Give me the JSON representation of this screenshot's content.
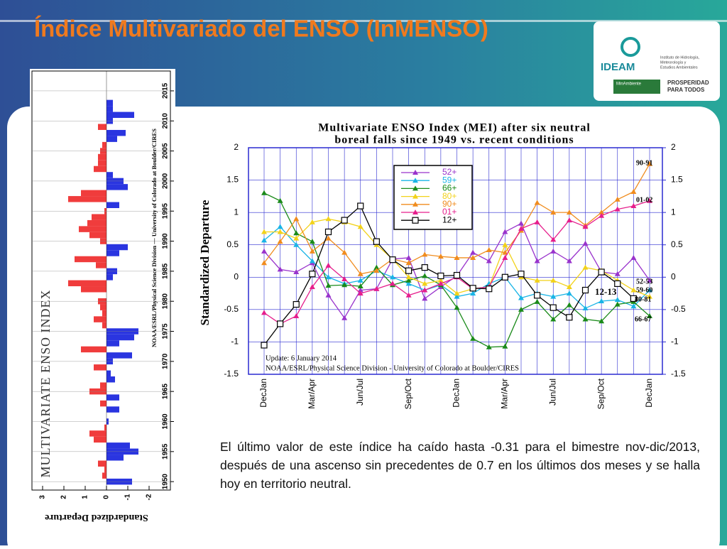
{
  "title": "Índice Multivariado del ENSO (InMENSO)",
  "logo": {
    "name": "IDEAM",
    "subtitle": [
      "Instituto de Hidrología,",
      "Meteorología y",
      "Estudios Ambientales"
    ],
    "ministry": "MinAmbiente",
    "slogan": [
      "PROSPERIDAD",
      "PARA TODOS"
    ]
  },
  "paragraph": "El último valor de este índice ha caído hasta -0.31 para el bimestre nov-dic/2013, después de una ascenso sin precedentes de 0.7 en los últimos dos meses y se halla hoy en territorio neutral.",
  "chart_data": [
    {
      "type": "bar-history",
      "title": "MULTIVARIATE ENSO INDEX",
      "value_label": "Standardized Departure",
      "credit": "NOAA/ESRL/Physical Science Division — University of Colorado at Boulder/CIRES",
      "x": [
        1950,
        1951,
        1952,
        1953,
        1954,
        1955,
        1956,
        1957,
        1958,
        1959,
        1960,
        1961,
        1962,
        1963,
        1964,
        1965,
        1966,
        1967,
        1968,
        1969,
        1970,
        1971,
        1972,
        1973,
        1974,
        1975,
        1976,
        1977,
        1978,
        1979,
        1980,
        1981,
        1982,
        1983,
        1984,
        1985,
        1986,
        1987,
        1988,
        1989,
        1990,
        1991,
        1992,
        1993,
        1994,
        1995,
        1996,
        1997,
        1998,
        1999,
        2000,
        2001,
        2002,
        2003,
        2004,
        2005,
        2006,
        2007,
        2008,
        2009,
        2010,
        2011,
        2012,
        2013
      ],
      "values": [
        -1.2,
        0.2,
        0.1,
        0.4,
        -0.8,
        -1.5,
        -1.1,
        0.6,
        0.8,
        0.1,
        -0.1,
        0.0,
        -0.6,
        0.3,
        -0.6,
        0.8,
        0.3,
        -0.4,
        -0.2,
        0.6,
        -0.3,
        -1.2,
        1.2,
        -0.6,
        -1.3,
        -1.5,
        0.2,
        0.6,
        0.2,
        0.3,
        0.4,
        0.0,
        1.2,
        1.8,
        -0.3,
        -0.5,
        0.5,
        1.5,
        -0.6,
        -1.0,
        0.3,
        0.8,
        1.3,
        0.9,
        0.7,
        0.1,
        -0.6,
        1.8,
        1.2,
        -1.0,
        -0.8,
        -0.3,
        0.6,
        0.4,
        0.4,
        0.3,
        0.2,
        -0.5,
        -0.9,
        0.4,
        -0.3,
        -1.3,
        -0.3,
        -0.3
      ],
      "positive_color": "#f03c3c",
      "negative_color": "#2a35e0",
      "xlim": [
        3.5,
        -3
      ],
      "xticks": [
        3,
        2,
        1,
        0,
        -1,
        -2
      ],
      "ylim": [
        1948.6,
        2018.3
      ],
      "yticks": [
        1950,
        1955,
        1960,
        1965,
        1970,
        1975,
        1980,
        1985,
        1990,
        1995,
        2000,
        2005,
        2010,
        2015
      ]
    },
    {
      "type": "line",
      "title": [
        "Multivariate ENSO Index (MEI) after six neutral",
        "boreal falls since 1949 vs. recent conditions"
      ],
      "y_label": "Standardized Departure",
      "categories": [
        "DecJan",
        null,
        null,
        "Mar/Apr",
        null,
        null,
        "Jun/Jul",
        null,
        null,
        "Sep/Oct",
        null,
        null,
        "DecJan",
        null,
        null,
        "Mar/Apr",
        null,
        null,
        "Jun/Jul",
        null,
        null,
        "Sep/Oct",
        null,
        null,
        "DecJan"
      ],
      "ylim": [
        -1.5,
        2
      ],
      "yticks": [
        -1.5,
        -1,
        -0.5,
        0,
        0.5,
        1,
        1.5,
        2
      ],
      "y2lim": [
        -1.5,
        2
      ],
      "y2ticks": [
        -1.5,
        -1,
        -0.5,
        0,
        0.5,
        1,
        1.5,
        2
      ],
      "series": [
        {
          "name": "52+",
          "color": "#9933cc",
          "marker": "triangle",
          "values": [
            0.4,
            0.12,
            0.08,
            0.22,
            -0.28,
            -0.63,
            -0.2,
            -0.18,
            0.28,
            0.3,
            -0.33,
            -0.15,
            0.02,
            0.38,
            0.25,
            0.7,
            0.83,
            0.25,
            0.4,
            0.25,
            0.52,
            0.08,
            0.05,
            0.3,
            -0.05
          ]
        },
        {
          "name": "59+",
          "color": "#19b4e6",
          "marker": "triangle",
          "values": [
            0.57,
            0.78,
            0.5,
            0.25,
            0.0,
            -0.1,
            -0.05,
            0.1,
            0.0,
            -0.1,
            -0.2,
            -0.12,
            -0.3,
            -0.25,
            -0.1,
            0.0,
            -0.32,
            -0.25,
            -0.3,
            -0.25,
            -0.48,
            -0.37,
            -0.35,
            -0.45,
            -0.2
          ]
        },
        {
          "name": "66+",
          "color": "#1a8a1a",
          "marker": "triangle",
          "values": [
            1.3,
            1.18,
            0.68,
            0.55,
            -0.13,
            -0.12,
            -0.14,
            0.15,
            -0.12,
            -0.05,
            0.02,
            -0.12,
            -0.47,
            -0.95,
            -1.08,
            -1.07,
            -0.5,
            -0.38,
            -0.65,
            -0.43,
            -0.65,
            -0.68,
            -0.42,
            -0.38,
            -0.6
          ]
        },
        {
          "name": "80+",
          "color": "#f2d21a",
          "marker": "triangle",
          "values": [
            0.7,
            0.7,
            0.6,
            0.85,
            0.9,
            0.85,
            0.78,
            0.5,
            0.28,
            0.0,
            -0.1,
            -0.05,
            -0.25,
            -0.18,
            -0.15,
            0.5,
            0.0,
            -0.05,
            -0.05,
            -0.15,
            0.15,
            0.1,
            -0.05,
            -0.2,
            -0.3
          ]
        },
        {
          "name": "90+",
          "color": "#f08c1e",
          "marker": "triangle",
          "values": [
            0.22,
            0.55,
            0.9,
            0.4,
            0.6,
            0.38,
            0.05,
            0.1,
            0.28,
            0.22,
            0.35,
            0.32,
            0.3,
            0.3,
            0.42,
            0.38,
            0.72,
            1.15,
            1.0,
            1.0,
            0.8,
            1.0,
            1.2,
            1.32,
            1.75
          ]
        },
        {
          "name": "01+",
          "color": "#e61e8c",
          "marker": "triangle",
          "values": [
            -0.55,
            -0.72,
            -0.6,
            -0.15,
            0.18,
            -0.03,
            -0.25,
            -0.18,
            -0.1,
            -0.28,
            -0.2,
            -0.1,
            0.0,
            -0.18,
            -0.15,
            0.3,
            0.75,
            0.85,
            0.58,
            0.88,
            0.78,
            0.95,
            1.05,
            1.1,
            1.18
          ]
        },
        {
          "name": "12+",
          "color": "#000000",
          "marker": "square",
          "values": [
            -1.05,
            -0.72,
            -0.42,
            0.05,
            0.7,
            0.88,
            1.1,
            0.55,
            0.27,
            0.1,
            0.15,
            0.02,
            0.03,
            -0.17,
            -0.18,
            0.0,
            0.05,
            -0.28,
            -0.47,
            -0.62,
            -0.2,
            0.08,
            -0.1,
            -0.33,
            null
          ]
        }
      ],
      "annotations": [
        "90-91",
        "01-02",
        "52-53",
        "59-60",
        "80-81",
        "66-67",
        "12-13"
      ],
      "notes": [
        "Update:  6 January 2014",
        "NOAA/ESRL/Physical Science Division - University of Colorado at Boulder/CIRES"
      ]
    }
  ]
}
